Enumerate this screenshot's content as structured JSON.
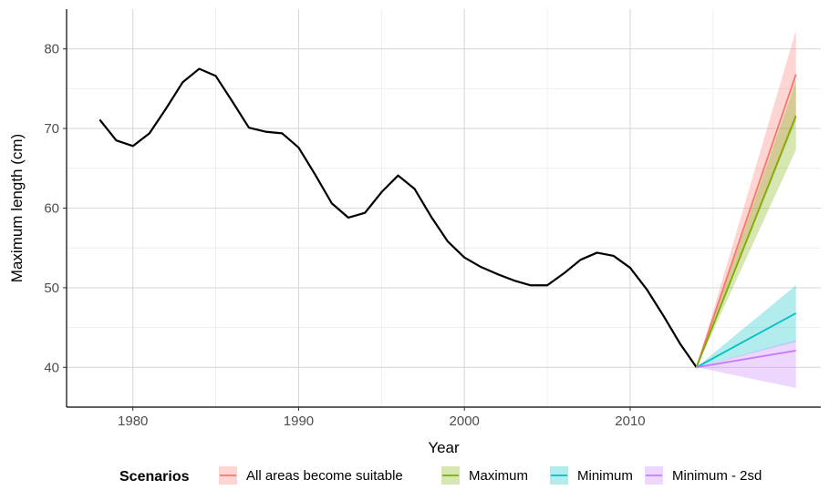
{
  "chart_data": {
    "type": "line",
    "title": "",
    "xlabel": "Year",
    "ylabel": "Maximum length (cm)",
    "xlim": [
      1976,
      2021.5
    ],
    "ylim": [
      35,
      85
    ],
    "x_ticks": [
      1980,
      1990,
      2000,
      2010
    ],
    "y_ticks": [
      40,
      50,
      60,
      70,
      80
    ],
    "grid": true,
    "legend_position": "bottom",
    "legend_title": "Scenarios",
    "historical": {
      "color": "#000000",
      "x": [
        1978,
        1979,
        1980,
        1981,
        1982,
        1983,
        1984,
        1985,
        1986,
        1987,
        1988,
        1989,
        1990,
        1991,
        1992,
        1993,
        1994,
        1995,
        1996,
        1997,
        1998,
        1999,
        2000,
        2001,
        2002,
        2003,
        2004,
        2005,
        2006,
        2007,
        2008,
        2009,
        2010,
        2011,
        2012,
        2013,
        2014
      ],
      "y": [
        71.1,
        68.5,
        67.8,
        69.4,
        72.5,
        75.8,
        77.5,
        76.6,
        73.4,
        70.1,
        69.6,
        69.4,
        67.6,
        64.2,
        60.6,
        58.8,
        59.4,
        62.0,
        64.1,
        62.4,
        58.9,
        55.8,
        53.8,
        52.6,
        51.7,
        50.9,
        50.3,
        50.3,
        51.8,
        53.5,
        54.4,
        54.0,
        52.5,
        49.8,
        46.5,
        43.0,
        40.0
      ]
    },
    "series": [
      {
        "name": "All areas become suitable",
        "color": "#F8766D",
        "x": [
          2014,
          2020
        ],
        "y": [
          40.0,
          76.8
        ],
        "lower": [
          40.0,
          71.0
        ],
        "upper": [
          40.0,
          82.3
        ]
      },
      {
        "name": "Maximum",
        "color": "#7CAE00",
        "x": [
          2014,
          2020
        ],
        "y": [
          40.0,
          71.6
        ],
        "lower": [
          40.0,
          67.3
        ],
        "upper": [
          40.0,
          75.9
        ]
      },
      {
        "name": "Minimum",
        "color": "#00BFC4",
        "x": [
          2014,
          2020
        ],
        "y": [
          40.0,
          46.8
        ],
        "lower": [
          40.0,
          43.2
        ],
        "upper": [
          40.0,
          50.3
        ]
      },
      {
        "name": "Minimum - 2sd",
        "color": "#C77CFF",
        "x": [
          2014,
          2020
        ],
        "y": [
          40.0,
          42.1
        ],
        "lower": [
          40.0,
          37.4
        ],
        "upper": [
          40.0,
          43.4
        ]
      }
    ]
  }
}
